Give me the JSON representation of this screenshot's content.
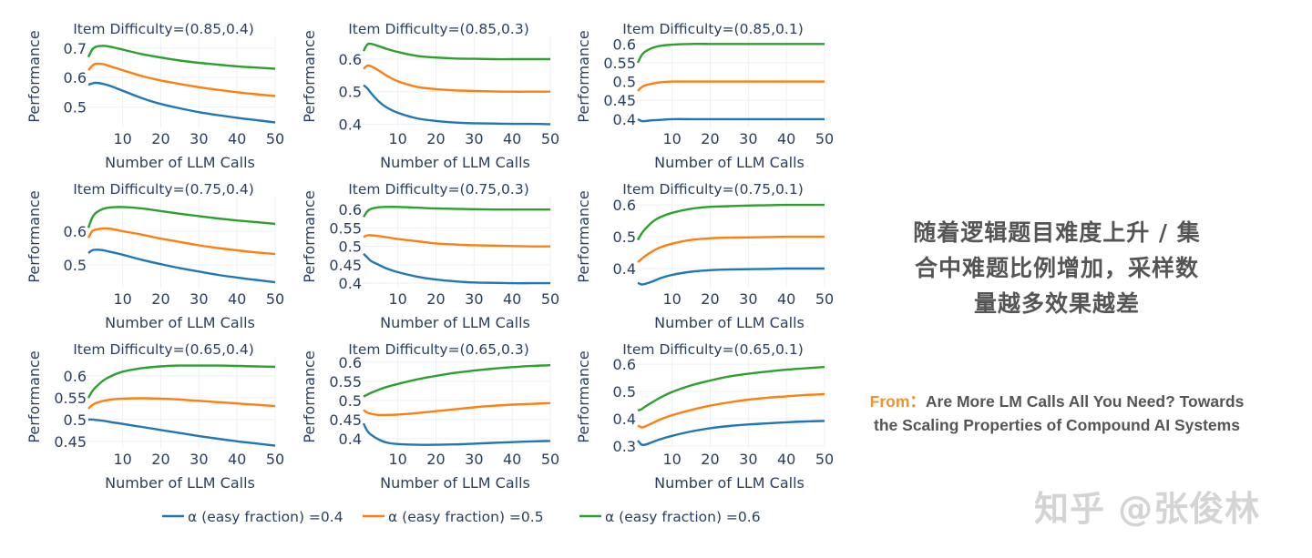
{
  "chart_data": [
    {
      "type": "line",
      "title": "Item Difficulty=(0.85,0.4)",
      "xlabel": "Number of LLM Calls",
      "ylabel": "Performance",
      "xlim": [
        1,
        50
      ],
      "ylim": [
        0.43,
        0.74
      ],
      "xticks": [
        10,
        20,
        30,
        40,
        50
      ],
      "yticks": [
        0.5,
        0.6,
        0.7
      ],
      "grid": true,
      "x": [
        1,
        2,
        3,
        5,
        7,
        10,
        15,
        20,
        25,
        30,
        35,
        40,
        45,
        50
      ],
      "series": [
        {
          "name": "α (easy fraction) =0.4",
          "values": [
            0.575,
            0.58,
            0.582,
            0.578,
            0.57,
            0.555,
            0.53,
            0.51,
            0.495,
            0.482,
            0.472,
            0.463,
            0.455,
            0.447
          ]
        },
        {
          "name": "α (easy fraction) =0.5",
          "values": [
            0.625,
            0.64,
            0.647,
            0.645,
            0.637,
            0.625,
            0.605,
            0.59,
            0.578,
            0.567,
            0.558,
            0.55,
            0.543,
            0.537
          ]
        },
        {
          "name": "α (easy fraction) =0.6",
          "values": [
            0.67,
            0.695,
            0.705,
            0.708,
            0.704,
            0.695,
            0.68,
            0.668,
            0.658,
            0.65,
            0.644,
            0.638,
            0.634,
            0.63
          ]
        }
      ]
    },
    {
      "type": "line",
      "title": "Item Difficulty=(0.85,0.3)",
      "xlabel": "Number of LLM Calls",
      "ylabel": "Performance",
      "xlim": [
        1,
        50
      ],
      "ylim": [
        0.39,
        0.67
      ],
      "xticks": [
        10,
        20,
        30,
        40,
        50
      ],
      "yticks": [
        0.4,
        0.5,
        0.6
      ],
      "grid": true,
      "x": [
        1,
        2,
        3,
        5,
        7,
        10,
        15,
        20,
        25,
        30,
        35,
        40,
        45,
        50
      ],
      "series": [
        {
          "name": "α (easy fraction) =0.4",
          "values": [
            0.52,
            0.51,
            0.495,
            0.47,
            0.452,
            0.435,
            0.418,
            0.41,
            0.405,
            0.403,
            0.402,
            0.401,
            0.401,
            0.4
          ]
        },
        {
          "name": "α (easy fraction) =0.5",
          "values": [
            0.57,
            0.58,
            0.578,
            0.565,
            0.55,
            0.532,
            0.515,
            0.508,
            0.504,
            0.502,
            0.501,
            0.5,
            0.5,
            0.5
          ]
        },
        {
          "name": "α (easy fraction) =0.6",
          "values": [
            0.625,
            0.645,
            0.647,
            0.64,
            0.632,
            0.622,
            0.61,
            0.605,
            0.602,
            0.601,
            0.6,
            0.6,
            0.6,
            0.6
          ]
        }
      ]
    },
    {
      "type": "line",
      "title": "Item Difficulty=(0.85,0.1)",
      "xlabel": "Number of LLM Calls",
      "ylabel": "Performance",
      "xlim": [
        1,
        50
      ],
      "ylim": [
        0.378,
        0.62
      ],
      "xticks": [
        10,
        20,
        30,
        40,
        50
      ],
      "yticks": [
        0.4,
        0.45,
        0.5,
        0.55,
        0.6
      ],
      "grid": true,
      "x": [
        1,
        2,
        3,
        5,
        7,
        10,
        15,
        20,
        25,
        30,
        35,
        40,
        45,
        50
      ],
      "series": [
        {
          "name": "α (easy fraction) =0.4",
          "values": [
            0.4,
            0.395,
            0.395,
            0.397,
            0.398,
            0.4,
            0.4,
            0.4,
            0.4,
            0.4,
            0.4,
            0.4,
            0.4,
            0.4
          ]
        },
        {
          "name": "α (easy fraction) =0.5",
          "values": [
            0.475,
            0.485,
            0.49,
            0.495,
            0.498,
            0.5,
            0.5,
            0.5,
            0.5,
            0.5,
            0.5,
            0.5,
            0.5,
            0.5
          ]
        },
        {
          "name": "α (easy fraction) =0.6",
          "values": [
            0.55,
            0.57,
            0.58,
            0.59,
            0.595,
            0.598,
            0.6,
            0.6,
            0.6,
            0.6,
            0.6,
            0.6,
            0.6,
            0.6
          ]
        }
      ]
    },
    {
      "type": "line",
      "title": "Item Difficulty=(0.75,0.4)",
      "xlabel": "Number of LLM Calls",
      "ylabel": "Performance",
      "xlim": [
        1,
        50
      ],
      "ylim": [
        0.432,
        0.703
      ],
      "xticks": [
        10,
        20,
        30,
        40,
        50
      ],
      "yticks": [
        0.5,
        0.6
      ],
      "grid": true,
      "x": [
        1,
        2,
        3,
        5,
        7,
        10,
        15,
        20,
        25,
        30,
        35,
        40,
        45,
        50
      ],
      "series": [
        {
          "name": "α (easy fraction) =0.4",
          "values": [
            0.535,
            0.543,
            0.545,
            0.543,
            0.538,
            0.53,
            0.515,
            0.502,
            0.49,
            0.48,
            0.47,
            0.462,
            0.455,
            0.448
          ]
        },
        {
          "name": "α (easy fraction) =0.5",
          "values": [
            0.58,
            0.6,
            0.605,
            0.608,
            0.607,
            0.6,
            0.59,
            0.578,
            0.568,
            0.558,
            0.55,
            0.543,
            0.537,
            0.532
          ]
        },
        {
          "name": "α (easy fraction) =0.6",
          "values": [
            0.61,
            0.64,
            0.655,
            0.667,
            0.671,
            0.672,
            0.668,
            0.66,
            0.652,
            0.645,
            0.638,
            0.632,
            0.627,
            0.622
          ]
        }
      ]
    },
    {
      "type": "line",
      "title": "Item Difficulty=(0.75,0.3)",
      "xlabel": "Number of LLM Calls",
      "ylabel": "Performance",
      "xlim": [
        1,
        50
      ],
      "ylim": [
        0.388,
        0.635
      ],
      "xticks": [
        10,
        20,
        30,
        40,
        50
      ],
      "yticks": [
        0.4,
        0.45,
        0.5,
        0.55,
        0.6
      ],
      "grid": true,
      "x": [
        1,
        2,
        3,
        5,
        7,
        10,
        15,
        20,
        25,
        30,
        35,
        40,
        45,
        50
      ],
      "series": [
        {
          "name": "α (easy fraction) =0.4",
          "values": [
            0.48,
            0.47,
            0.46,
            0.45,
            0.44,
            0.43,
            0.418,
            0.41,
            0.405,
            0.402,
            0.401,
            0.4,
            0.4,
            0.4
          ]
        },
        {
          "name": "α (easy fraction) =0.5",
          "values": [
            0.525,
            0.53,
            0.53,
            0.528,
            0.525,
            0.52,
            0.514,
            0.508,
            0.505,
            0.503,
            0.502,
            0.501,
            0.5,
            0.5
          ]
        },
        {
          "name": "α (easy fraction) =0.6",
          "values": [
            0.58,
            0.595,
            0.602,
            0.606,
            0.607,
            0.607,
            0.605,
            0.603,
            0.602,
            0.601,
            0.6,
            0.6,
            0.6,
            0.6
          ]
        }
      ]
    },
    {
      "type": "line",
      "title": "Item Difficulty=(0.75,0.1)",
      "xlabel": "Number of LLM Calls",
      "ylabel": "Performance",
      "xlim": [
        1,
        50
      ],
      "ylim": [
        0.34,
        0.626
      ],
      "xticks": [
        10,
        20,
        30,
        40,
        50
      ],
      "yticks": [
        0.4,
        0.5,
        0.6
      ],
      "grid": true,
      "x": [
        1,
        2,
        3,
        5,
        7,
        10,
        15,
        20,
        25,
        30,
        35,
        40,
        45,
        50
      ],
      "series": [
        {
          "name": "α (easy fraction) =0.4",
          "values": [
            0.355,
            0.35,
            0.352,
            0.36,
            0.37,
            0.38,
            0.39,
            0.395,
            0.397,
            0.398,
            0.399,
            0.4,
            0.4,
            0.4
          ]
        },
        {
          "name": "α (easy fraction) =0.5",
          "values": [
            0.42,
            0.43,
            0.44,
            0.455,
            0.467,
            0.478,
            0.49,
            0.495,
            0.497,
            0.498,
            0.499,
            0.5,
            0.5,
            0.5
          ]
        },
        {
          "name": "α (easy fraction) =0.6",
          "values": [
            0.49,
            0.51,
            0.525,
            0.548,
            0.562,
            0.575,
            0.588,
            0.594,
            0.596,
            0.598,
            0.599,
            0.6,
            0.6,
            0.6
          ]
        }
      ]
    },
    {
      "type": "line",
      "title": "Item Difficulty=(0.65,0.4)",
      "xlabel": "Number of LLM Calls",
      "ylabel": "Performance",
      "xlim": [
        1,
        50
      ],
      "ylim": [
        0.435,
        0.644
      ],
      "xticks": [
        10,
        20,
        30,
        40,
        50
      ],
      "yticks": [
        0.45,
        0.5,
        0.55,
        0.6
      ],
      "grid": true,
      "x": [
        1,
        2,
        3,
        5,
        7,
        10,
        15,
        20,
        25,
        30,
        35,
        40,
        45,
        50
      ],
      "series": [
        {
          "name": "α (easy fraction) =0.4",
          "values": [
            0.5,
            0.5,
            0.499,
            0.497,
            0.494,
            0.49,
            0.483,
            0.476,
            0.469,
            0.462,
            0.456,
            0.45,
            0.445,
            0.44
          ]
        },
        {
          "name": "α (easy fraction) =0.5",
          "values": [
            0.525,
            0.533,
            0.538,
            0.543,
            0.546,
            0.548,
            0.549,
            0.548,
            0.546,
            0.543,
            0.54,
            0.537,
            0.534,
            0.531
          ]
        },
        {
          "name": "α (easy fraction) =0.6",
          "values": [
            0.55,
            0.565,
            0.575,
            0.59,
            0.6,
            0.61,
            0.618,
            0.622,
            0.624,
            0.624,
            0.624,
            0.623,
            0.622,
            0.621
          ]
        }
      ]
    },
    {
      "type": "line",
      "title": "Item Difficulty=(0.65,0.3)",
      "xlabel": "Number of LLM Calls",
      "ylabel": "Performance",
      "xlim": [
        1,
        50
      ],
      "ylim": [
        0.376,
        0.614
      ],
      "xticks": [
        10,
        20,
        30,
        40,
        50
      ],
      "yticks": [
        0.4,
        0.45,
        0.5,
        0.55,
        0.6
      ],
      "grid": true,
      "x": [
        1,
        2,
        3,
        5,
        7,
        10,
        15,
        20,
        25,
        30,
        35,
        40,
        45,
        50
      ],
      "series": [
        {
          "name": "α (easy fraction) =0.4",
          "values": [
            0.44,
            0.42,
            0.41,
            0.398,
            0.39,
            0.386,
            0.384,
            0.384,
            0.385,
            0.387,
            0.389,
            0.391,
            0.393,
            0.394
          ]
        },
        {
          "name": "α (easy fraction) =0.5",
          "values": [
            0.475,
            0.468,
            0.465,
            0.462,
            0.462,
            0.463,
            0.467,
            0.472,
            0.477,
            0.482,
            0.486,
            0.489,
            0.491,
            0.493
          ]
        },
        {
          "name": "α (easy fraction) =0.6",
          "values": [
            0.51,
            0.515,
            0.52,
            0.528,
            0.535,
            0.543,
            0.555,
            0.564,
            0.572,
            0.578,
            0.583,
            0.587,
            0.59,
            0.592
          ]
        }
      ]
    },
    {
      "type": "line",
      "title": "Item Difficulty=(0.65,0.1)",
      "xlabel": "Number of LLM Calls",
      "ylabel": "Performance",
      "xlim": [
        1,
        50
      ],
      "ylim": [
        0.293,
        0.627
      ],
      "xticks": [
        10,
        20,
        30,
        40,
        50
      ],
      "yticks": [
        0.3,
        0.4,
        0.5,
        0.6
      ],
      "grid": true,
      "x": [
        1,
        2,
        3,
        5,
        7,
        10,
        15,
        20,
        25,
        30,
        35,
        40,
        45,
        50
      ],
      "series": [
        {
          "name": "α (easy fraction) =0.4",
          "values": [
            0.32,
            0.305,
            0.305,
            0.315,
            0.325,
            0.337,
            0.353,
            0.365,
            0.373,
            0.379,
            0.383,
            0.387,
            0.39,
            0.392
          ]
        },
        {
          "name": "α (easy fraction) =0.5",
          "values": [
            0.375,
            0.368,
            0.372,
            0.385,
            0.398,
            0.413,
            0.432,
            0.448,
            0.46,
            0.47,
            0.477,
            0.482,
            0.487,
            0.49
          ]
        },
        {
          "name": "α (easy fraction) =0.6",
          "values": [
            0.43,
            0.435,
            0.445,
            0.462,
            0.478,
            0.498,
            0.522,
            0.54,
            0.555,
            0.565,
            0.573,
            0.58,
            0.585,
            0.59
          ]
        }
      ]
    }
  ],
  "legend": {
    "placement": "bottom",
    "items": [
      {
        "label": "α (easy fraction) =0.4",
        "color": "#1f77b4"
      },
      {
        "label": "α (easy fraction) =0.5",
        "color": "#ff7f0e"
      },
      {
        "label": "α (easy fraction) =0.6",
        "color": "#2ca02c"
      }
    ]
  },
  "note": {
    "lines": [
      "随着逻辑题目难度上升 / 集",
      "合中难题比例增加，采样数",
      "量越多效果越差"
    ]
  },
  "source": {
    "from": "From：",
    "line1": "Are More LM Calls All You Need? Towards",
    "line2": "the Scaling Properties of Compound AI Systems",
    "from_color": "#f0922d"
  },
  "watermark": "知乎 @张俊林"
}
